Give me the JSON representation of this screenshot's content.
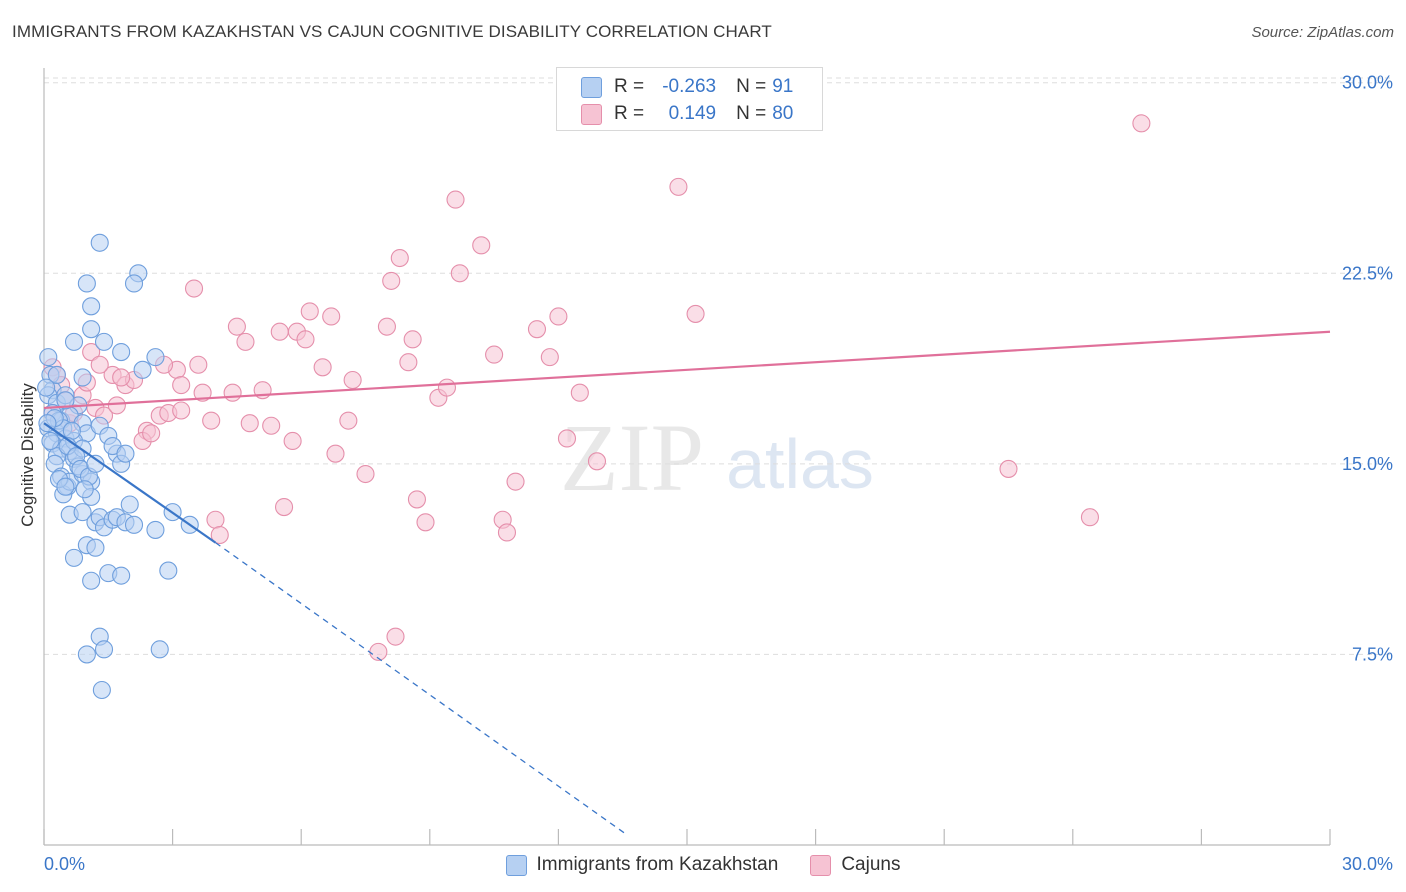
{
  "header": {
    "title": "IMMIGRANTS FROM KAZAKHSTAN VS CAJUN COGNITIVE DISABILITY CORRELATION CHART",
    "source": "Source: ZipAtlas.com"
  },
  "watermark": {
    "zip": "ZIP",
    "atlas": "atlas"
  },
  "legend_top": {
    "rows": [
      {
        "r_label": "R =",
        "r_value": "-0.263",
        "n_label": "N =",
        "n_value": "91"
      },
      {
        "r_label": "R =",
        "r_value": "0.149",
        "n_label": "N =",
        "n_value": "80"
      }
    ]
  },
  "colors": {
    "blue_fill": "#b6d0f2",
    "blue_stroke": "#6f9fdd",
    "blue_line": "#3a76c8",
    "pink_fill": "#f6c3d3",
    "pink_stroke": "#e58fab",
    "pink_line": "#e0709a",
    "tick_label": "#3a76c8",
    "grid": "#dddddd"
  },
  "chart_data": {
    "type": "scatter",
    "title": "IMMIGRANTS FROM KAZAKHSTAN VS CAJUN COGNITIVE DISABILITY CORRELATION CHART",
    "xlabel": "",
    "ylabel": "Cognitive Disability",
    "xlim": [
      0,
      30
    ],
    "ylim": [
      0,
      30.5
    ],
    "x_tick_labels": [
      "0.0%",
      "30.0%"
    ],
    "y_ticks": [
      7.5,
      15.0,
      22.5,
      30.0
    ],
    "y_tick_labels": [
      "7.5%",
      "15.0%",
      "22.5%",
      "30.0%"
    ],
    "grid": "horizontal dashed",
    "legend_position": "bottom-center",
    "series": [
      {
        "name": "Immigrants from Kazakhstan",
        "color": "#6f9fdd",
        "r": -0.263,
        "n": 91,
        "trend": {
          "x": [
            0.0,
            4.0
          ],
          "y": [
            16.6,
            11.9
          ],
          "dashed_to": [
            13.6,
            0.4
          ]
        },
        "points": [
          [
            0.1,
            19.2
          ],
          [
            0.15,
            18.5
          ],
          [
            0.2,
            17.9
          ],
          [
            0.1,
            17.7
          ],
          [
            0.3,
            17.4
          ],
          [
            0.2,
            17.0
          ],
          [
            0.4,
            16.7
          ],
          [
            0.1,
            16.4
          ],
          [
            0.3,
            16.2
          ],
          [
            0.5,
            16.0
          ],
          [
            0.2,
            15.8
          ],
          [
            0.4,
            15.6
          ],
          [
            0.6,
            15.5
          ],
          [
            0.3,
            15.3
          ],
          [
            0.7,
            15.2
          ],
          [
            0.25,
            15.0
          ],
          [
            0.5,
            17.7
          ],
          [
            0.8,
            17.3
          ],
          [
            0.6,
            16.9
          ],
          [
            0.9,
            16.6
          ],
          [
            1.0,
            16.2
          ],
          [
            0.7,
            15.9
          ],
          [
            0.9,
            15.6
          ],
          [
            0.4,
            14.5
          ],
          [
            0.55,
            14.1
          ],
          [
            0.45,
            13.8
          ],
          [
            0.6,
            14.3
          ],
          [
            0.9,
            14.6
          ],
          [
            1.1,
            14.3
          ],
          [
            0.8,
            14.9
          ],
          [
            0.6,
            13.0
          ],
          [
            1.3,
            16.5
          ],
          [
            1.5,
            16.1
          ],
          [
            1.7,
            15.4
          ],
          [
            1.6,
            15.7
          ],
          [
            1.8,
            15.0
          ],
          [
            1.9,
            15.4
          ],
          [
            1.1,
            13.7
          ],
          [
            0.9,
            13.1
          ],
          [
            1.2,
            12.7
          ],
          [
            1.3,
            12.9
          ],
          [
            1.4,
            12.5
          ],
          [
            1.6,
            12.8
          ],
          [
            1.7,
            12.9
          ],
          [
            1.9,
            12.7
          ],
          [
            2.0,
            13.4
          ],
          [
            2.1,
            12.6
          ],
          [
            1.0,
            11.8
          ],
          [
            1.2,
            11.7
          ],
          [
            0.7,
            11.3
          ],
          [
            1.5,
            10.7
          ],
          [
            1.8,
            10.6
          ],
          [
            1.1,
            10.4
          ],
          [
            1.3,
            8.2
          ],
          [
            1.0,
            7.5
          ],
          [
            1.4,
            7.7
          ],
          [
            1.35,
            6.1
          ],
          [
            2.7,
            7.7
          ],
          [
            2.9,
            10.8
          ],
          [
            2.6,
            12.4
          ],
          [
            3.0,
            13.1
          ],
          [
            3.4,
            12.6
          ],
          [
            2.6,
            19.2
          ],
          [
            1.3,
            23.7
          ],
          [
            2.2,
            22.5
          ],
          [
            2.1,
            22.1
          ],
          [
            1.0,
            22.1
          ],
          [
            1.1,
            21.2
          ],
          [
            1.1,
            20.3
          ],
          [
            0.7,
            19.8
          ],
          [
            1.4,
            19.8
          ],
          [
            1.8,
            19.4
          ],
          [
            2.3,
            18.7
          ],
          [
            0.9,
            18.4
          ],
          [
            0.3,
            18.5
          ],
          [
            0.5,
            17.5
          ],
          [
            0.35,
            16.7
          ],
          [
            0.45,
            16.4
          ],
          [
            0.65,
            16.3
          ],
          [
            0.25,
            16.8
          ],
          [
            0.15,
            15.9
          ],
          [
            0.55,
            15.7
          ],
          [
            0.75,
            15.3
          ],
          [
            0.85,
            14.8
          ],
          [
            1.05,
            14.5
          ],
          [
            0.95,
            14.0
          ],
          [
            0.35,
            14.4
          ],
          [
            0.5,
            14.1
          ],
          [
            1.2,
            15.0
          ],
          [
            0.05,
            18.0
          ],
          [
            0.08,
            16.6
          ]
        ]
      },
      {
        "name": "Cajuns",
        "color": "#e58fab",
        "r": 0.149,
        "n": 80,
        "trend": {
          "x": [
            0.0,
            30.0
          ],
          "y": [
            17.2,
            20.2
          ]
        },
        "points": [
          [
            0.2,
            18.8
          ],
          [
            0.3,
            18.5
          ],
          [
            0.4,
            18.1
          ],
          [
            0.5,
            17.5
          ],
          [
            0.2,
            17.0
          ],
          [
            0.6,
            16.6
          ],
          [
            0.9,
            17.7
          ],
          [
            1.1,
            19.4
          ],
          [
            1.0,
            18.2
          ],
          [
            1.2,
            17.2
          ],
          [
            1.4,
            16.9
          ],
          [
            1.6,
            18.5
          ],
          [
            1.7,
            17.3
          ],
          [
            1.9,
            18.1
          ],
          [
            2.1,
            18.3
          ],
          [
            2.4,
            16.3
          ],
          [
            2.3,
            15.9
          ],
          [
            2.5,
            16.2
          ],
          [
            2.7,
            16.9
          ],
          [
            2.9,
            17.0
          ],
          [
            3.1,
            18.7
          ],
          [
            3.2,
            18.1
          ],
          [
            3.6,
            18.9
          ],
          [
            3.7,
            17.8
          ],
          [
            3.9,
            16.7
          ],
          [
            4.0,
            12.8
          ],
          [
            4.1,
            12.2
          ],
          [
            4.4,
            17.8
          ],
          [
            4.5,
            20.4
          ],
          [
            4.7,
            19.8
          ],
          [
            4.8,
            16.6
          ],
          [
            5.1,
            17.9
          ],
          [
            5.3,
            16.5
          ],
          [
            5.5,
            20.2
          ],
          [
            5.6,
            13.3
          ],
          [
            5.8,
            15.9
          ],
          [
            5.9,
            20.2
          ],
          [
            6.1,
            19.9
          ],
          [
            6.2,
            21.0
          ],
          [
            6.5,
            18.8
          ],
          [
            6.7,
            20.8
          ],
          [
            6.8,
            15.4
          ],
          [
            7.1,
            16.7
          ],
          [
            7.2,
            18.3
          ],
          [
            7.5,
            14.6
          ],
          [
            8.0,
            20.4
          ],
          [
            8.1,
            22.2
          ],
          [
            8.3,
            23.1
          ],
          [
            8.5,
            19.0
          ],
          [
            8.6,
            19.9
          ],
          [
            8.7,
            13.6
          ],
          [
            8.9,
            12.7
          ],
          [
            9.2,
            17.6
          ],
          [
            9.4,
            18.0
          ],
          [
            9.6,
            25.4
          ],
          [
            9.7,
            22.5
          ],
          [
            10.2,
            23.6
          ],
          [
            10.5,
            19.3
          ],
          [
            10.7,
            12.8
          ],
          [
            10.8,
            12.3
          ],
          [
            11.0,
            14.3
          ],
          [
            11.5,
            20.3
          ],
          [
            11.8,
            19.2
          ],
          [
            12.0,
            20.8
          ],
          [
            12.2,
            16.0
          ],
          [
            12.5,
            17.8
          ],
          [
            12.9,
            15.1
          ],
          [
            14.8,
            25.9
          ],
          [
            15.2,
            20.9
          ],
          [
            22.5,
            14.8
          ],
          [
            24.4,
            12.9
          ],
          [
            25.6,
            28.4
          ],
          [
            8.2,
            8.2
          ],
          [
            7.8,
            7.6
          ],
          [
            3.5,
            21.9
          ],
          [
            2.8,
            18.9
          ],
          [
            3.2,
            17.1
          ],
          [
            1.3,
            18.9
          ],
          [
            0.7,
            17.0
          ],
          [
            1.8,
            18.4
          ]
        ]
      }
    ]
  },
  "legend_bottom": {
    "items": [
      {
        "label": "Immigrants from Kazakhstan"
      },
      {
        "label": "Cajuns"
      }
    ]
  }
}
